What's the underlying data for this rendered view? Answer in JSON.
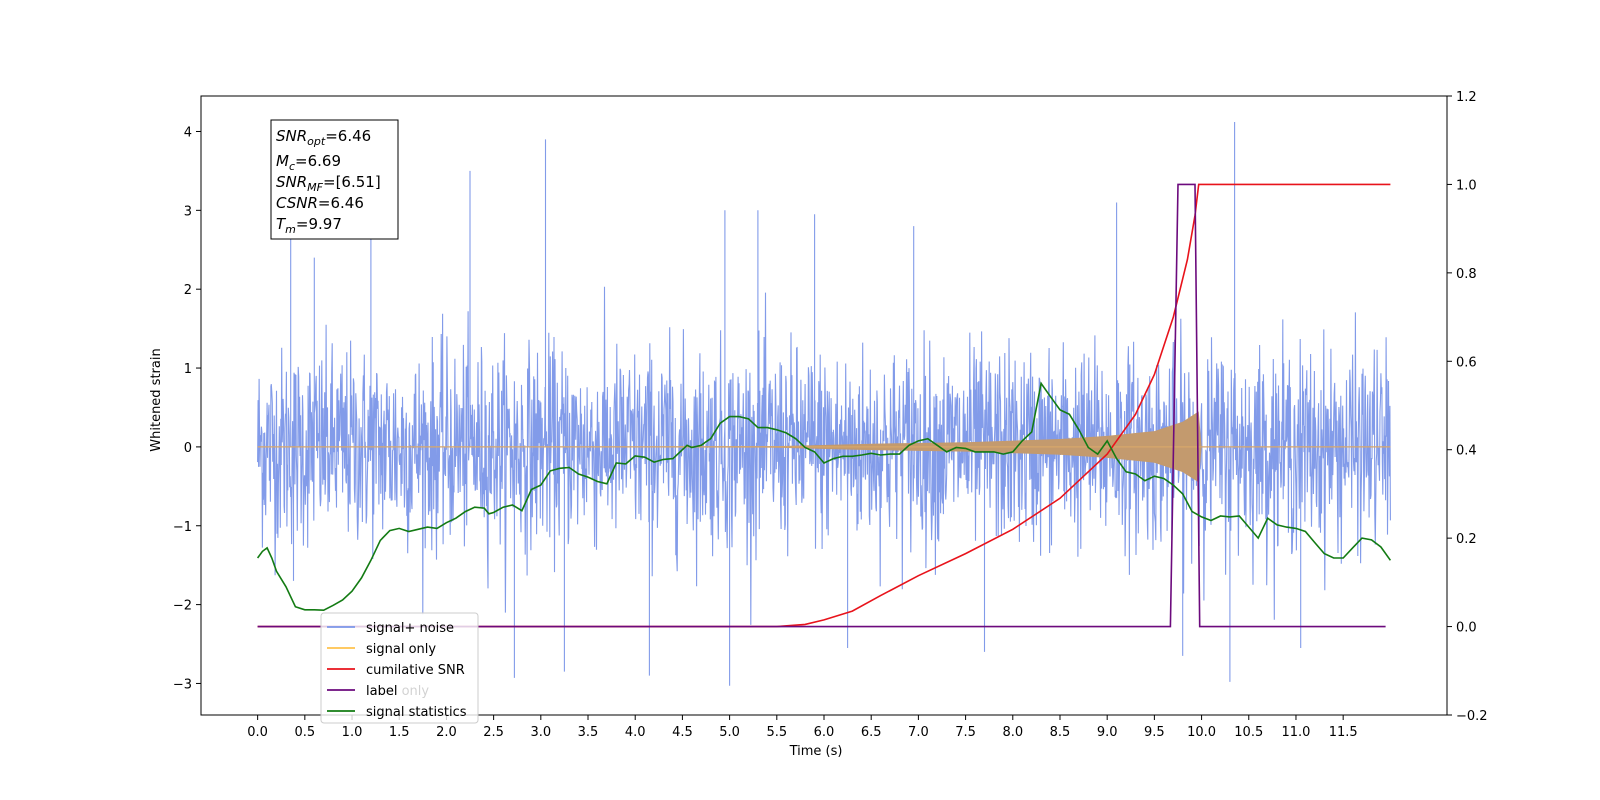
{
  "chart_data": {
    "type": "line",
    "xlabel": "Time (s)",
    "ylabel_left": "Whitened strain",
    "ylabel_right": "",
    "xlim": [
      -0.6,
      12.6
    ],
    "ylim_left": [
      -3.4,
      4.45
    ],
    "ylim_right": [
      -0.2,
      1.2
    ],
    "x_ticks": [
      "0.0",
      "0.5",
      "1.0",
      "1.5",
      "2.0",
      "2.5",
      "3.0",
      "3.5",
      "4.0",
      "4.5",
      "5.0",
      "5.5",
      "6.0",
      "6.5",
      "7.0",
      "7.5",
      "8.0",
      "8.5",
      "9.0",
      "9.5",
      "10.0",
      "10.5",
      "11.0",
      "11.5"
    ],
    "y_ticks_left": [
      "−3",
      "−2",
      "−1",
      "0",
      "1",
      "2",
      "3",
      "4"
    ],
    "y_ticks_right": [
      "−0.2",
      "0.0",
      "0.2",
      "0.4",
      "0.6",
      "0.8",
      "1.0",
      "1.2"
    ],
    "grid": false,
    "legend_position": "lower-left",
    "annotation": {
      "snr_opt": {
        "base": "SNR",
        "sub": "opt",
        "value": "=6.46"
      },
      "mc": {
        "base": "M",
        "sub": "c",
        "value": "=6.69"
      },
      "snr_mf": {
        "base": "SNR",
        "sub": "MF",
        "value": "=[6.51]"
      },
      "csnr": {
        "base": "CSNR",
        "value": "=6.46"
      },
      "tm": {
        "base": "T",
        "sub": "m",
        "value": "=9.97"
      }
    },
    "series": [
      {
        "name": "signal+ noise",
        "axis": "left",
        "color": "#7b96e8",
        "description": "noisy whitened strain, roughly -1.6..1.7 envelope with spikes",
        "range": [
          0.0,
          12.0
        ],
        "envelope": [
          -1.6,
          1.7
        ],
        "spikes": [
          {
            "x": 0.35,
            "y": 2.75
          },
          {
            "x": 0.38,
            "y": -1.7
          },
          {
            "x": 0.6,
            "y": 2.4
          },
          {
            "x": 1.2,
            "y": 2.75
          },
          {
            "x": 2.25,
            "y": 3.5
          },
          {
            "x": 2.72,
            "y": -2.93
          },
          {
            "x": 3.05,
            "y": 3.9
          },
          {
            "x": 3.25,
            "y": -2.85
          },
          {
            "x": 4.15,
            "y": -2.9
          },
          {
            "x": 4.95,
            "y": 3.0
          },
          {
            "x": 5.0,
            "y": -3.03
          },
          {
            "x": 5.3,
            "y": 3.0
          },
          {
            "x": 5.9,
            "y": 2.95
          },
          {
            "x": 6.25,
            "y": -2.55
          },
          {
            "x": 6.95,
            "y": 2.8
          },
          {
            "x": 7.7,
            "y": -2.6
          },
          {
            "x": 9.1,
            "y": 3.1
          },
          {
            "x": 9.8,
            "y": -2.65
          },
          {
            "x": 10.35,
            "y": 4.12
          },
          {
            "x": 10.3,
            "y": -2.98
          },
          {
            "x": 11.05,
            "y": -2.55
          }
        ]
      },
      {
        "name": "signal only",
        "axis": "left",
        "color": "#ffc34d",
        "description": "chirp growing in amplitude up to merger at ~9.97 s",
        "points": [
          [
            0.0,
            0.0
          ],
          [
            5.5,
            0.01
          ],
          [
            6.5,
            0.04
          ],
          [
            7.5,
            0.06
          ],
          [
            8.5,
            0.1
          ],
          [
            9.0,
            0.14
          ],
          [
            9.5,
            0.2
          ],
          [
            9.8,
            0.32
          ],
          [
            9.97,
            0.45
          ],
          [
            10.0,
            0.0
          ],
          [
            12.0,
            0.0
          ]
        ]
      },
      {
        "name": "cumilative SNR",
        "axis": "right",
        "color": "#e8131b",
        "points": [
          [
            0.0,
            0.0
          ],
          [
            5.5,
            0.0
          ],
          [
            5.8,
            0.005
          ],
          [
            6.0,
            0.015
          ],
          [
            6.3,
            0.035
          ],
          [
            6.6,
            0.07
          ],
          [
            7.0,
            0.115
          ],
          [
            7.5,
            0.165
          ],
          [
            8.0,
            0.22
          ],
          [
            8.5,
            0.29
          ],
          [
            9.0,
            0.39
          ],
          [
            9.3,
            0.48
          ],
          [
            9.5,
            0.57
          ],
          [
            9.7,
            0.7
          ],
          [
            9.85,
            0.83
          ],
          [
            9.93,
            0.93
          ],
          [
            9.97,
            1.0
          ],
          [
            12.0,
            1.0
          ]
        ]
      },
      {
        "name": "label",
        "axis": "right",
        "color": "#6c0a7d",
        "points": [
          [
            0.0,
            0.0
          ],
          [
            9.67,
            0.0
          ],
          [
            9.75,
            1.0
          ],
          [
            9.93,
            1.0
          ],
          [
            9.98,
            0.0
          ],
          [
            11.95,
            0.0
          ]
        ]
      },
      {
        "name": "signal statistics",
        "axis": "right",
        "color": "#137b13",
        "points": [
          [
            0.0,
            0.155
          ],
          [
            0.05,
            0.17
          ],
          [
            0.1,
            0.178
          ],
          [
            0.15,
            0.155
          ],
          [
            0.2,
            0.125
          ],
          [
            0.3,
            0.09
          ],
          [
            0.4,
            0.045
          ],
          [
            0.5,
            0.038
          ],
          [
            0.6,
            0.038
          ],
          [
            0.7,
            0.037
          ],
          [
            0.8,
            0.048
          ],
          [
            0.9,
            0.06
          ],
          [
            1.0,
            0.08
          ],
          [
            1.1,
            0.11
          ],
          [
            1.2,
            0.15
          ],
          [
            1.3,
            0.195
          ],
          [
            1.4,
            0.217
          ],
          [
            1.5,
            0.222
          ],
          [
            1.6,
            0.215
          ],
          [
            1.7,
            0.22
          ],
          [
            1.8,
            0.225
          ],
          [
            1.9,
            0.222
          ],
          [
            2.0,
            0.235
          ],
          [
            2.1,
            0.245
          ],
          [
            2.2,
            0.26
          ],
          [
            2.3,
            0.27
          ],
          [
            2.4,
            0.268
          ],
          [
            2.45,
            0.255
          ],
          [
            2.5,
            0.258
          ],
          [
            2.6,
            0.27
          ],
          [
            2.7,
            0.275
          ],
          [
            2.8,
            0.262
          ],
          [
            2.9,
            0.31
          ],
          [
            3.0,
            0.32
          ],
          [
            3.1,
            0.352
          ],
          [
            3.2,
            0.358
          ],
          [
            3.3,
            0.36
          ],
          [
            3.4,
            0.345
          ],
          [
            3.5,
            0.338
          ],
          [
            3.6,
            0.328
          ],
          [
            3.7,
            0.323
          ],
          [
            3.8,
            0.37
          ],
          [
            3.9,
            0.368
          ],
          [
            4.0,
            0.386
          ],
          [
            4.1,
            0.383
          ],
          [
            4.2,
            0.372
          ],
          [
            4.3,
            0.378
          ],
          [
            4.4,
            0.38
          ],
          [
            4.5,
            0.4
          ],
          [
            4.55,
            0.41
          ],
          [
            4.6,
            0.405
          ],
          [
            4.7,
            0.41
          ],
          [
            4.75,
            0.418
          ],
          [
            4.8,
            0.425
          ],
          [
            4.9,
            0.46
          ],
          [
            5.0,
            0.475
          ],
          [
            5.1,
            0.475
          ],
          [
            5.2,
            0.47
          ],
          [
            5.3,
            0.45
          ],
          [
            5.4,
            0.45
          ],
          [
            5.5,
            0.445
          ],
          [
            5.6,
            0.438
          ],
          [
            5.7,
            0.425
          ],
          [
            5.8,
            0.405
          ],
          [
            5.9,
            0.395
          ],
          [
            6.0,
            0.37
          ],
          [
            6.1,
            0.38
          ],
          [
            6.2,
            0.385
          ],
          [
            6.3,
            0.385
          ],
          [
            6.4,
            0.388
          ],
          [
            6.5,
            0.392
          ],
          [
            6.6,
            0.388
          ],
          [
            6.7,
            0.39
          ],
          [
            6.8,
            0.39
          ],
          [
            6.9,
            0.41
          ],
          [
            7.0,
            0.42
          ],
          [
            7.1,
            0.425
          ],
          [
            7.2,
            0.41
          ],
          [
            7.3,
            0.395
          ],
          [
            7.4,
            0.405
          ],
          [
            7.5,
            0.403
          ],
          [
            7.6,
            0.395
          ],
          [
            7.7,
            0.395
          ],
          [
            7.8,
            0.395
          ],
          [
            7.9,
            0.39
          ],
          [
            8.0,
            0.395
          ],
          [
            8.1,
            0.42
          ],
          [
            8.2,
            0.44
          ],
          [
            8.3,
            0.55
          ],
          [
            8.4,
            0.52
          ],
          [
            8.5,
            0.49
          ],
          [
            8.6,
            0.48
          ],
          [
            8.7,
            0.445
          ],
          [
            8.8,
            0.405
          ],
          [
            8.9,
            0.39
          ],
          [
            9.0,
            0.42
          ],
          [
            9.1,
            0.38
          ],
          [
            9.2,
            0.35
          ],
          [
            9.3,
            0.345
          ],
          [
            9.4,
            0.33
          ],
          [
            9.5,
            0.34
          ],
          [
            9.6,
            0.335
          ],
          [
            9.7,
            0.32
          ],
          [
            9.8,
            0.3
          ],
          [
            9.9,
            0.26
          ],
          [
            10.0,
            0.248
          ],
          [
            10.1,
            0.24
          ],
          [
            10.2,
            0.25
          ],
          [
            10.3,
            0.248
          ],
          [
            10.4,
            0.25
          ],
          [
            10.5,
            0.225
          ],
          [
            10.6,
            0.2
          ],
          [
            10.7,
            0.245
          ],
          [
            10.8,
            0.23
          ],
          [
            10.9,
            0.225
          ],
          [
            11.0,
            0.222
          ],
          [
            11.1,
            0.215
          ],
          [
            11.2,
            0.19
          ],
          [
            11.3,
            0.165
          ],
          [
            11.4,
            0.155
          ],
          [
            11.5,
            0.155
          ],
          [
            11.6,
            0.178
          ],
          [
            11.7,
            0.2
          ],
          [
            11.8,
            0.196
          ],
          [
            11.9,
            0.18
          ],
          [
            12.0,
            0.15
          ]
        ]
      }
    ],
    "legend_entries": [
      {
        "name": "signal+ noise",
        "color": "#7b96e8"
      },
      {
        "name": "signal only",
        "color": "#ffc34d"
      },
      {
        "name": "cumilative SNR",
        "color": "#e8131b"
      },
      {
        "name": "label",
        "color": "#6c0a7d"
      },
      {
        "name": "signal statistics",
        "color": "#137b13"
      }
    ],
    "legend_overlap_text": "label only"
  }
}
